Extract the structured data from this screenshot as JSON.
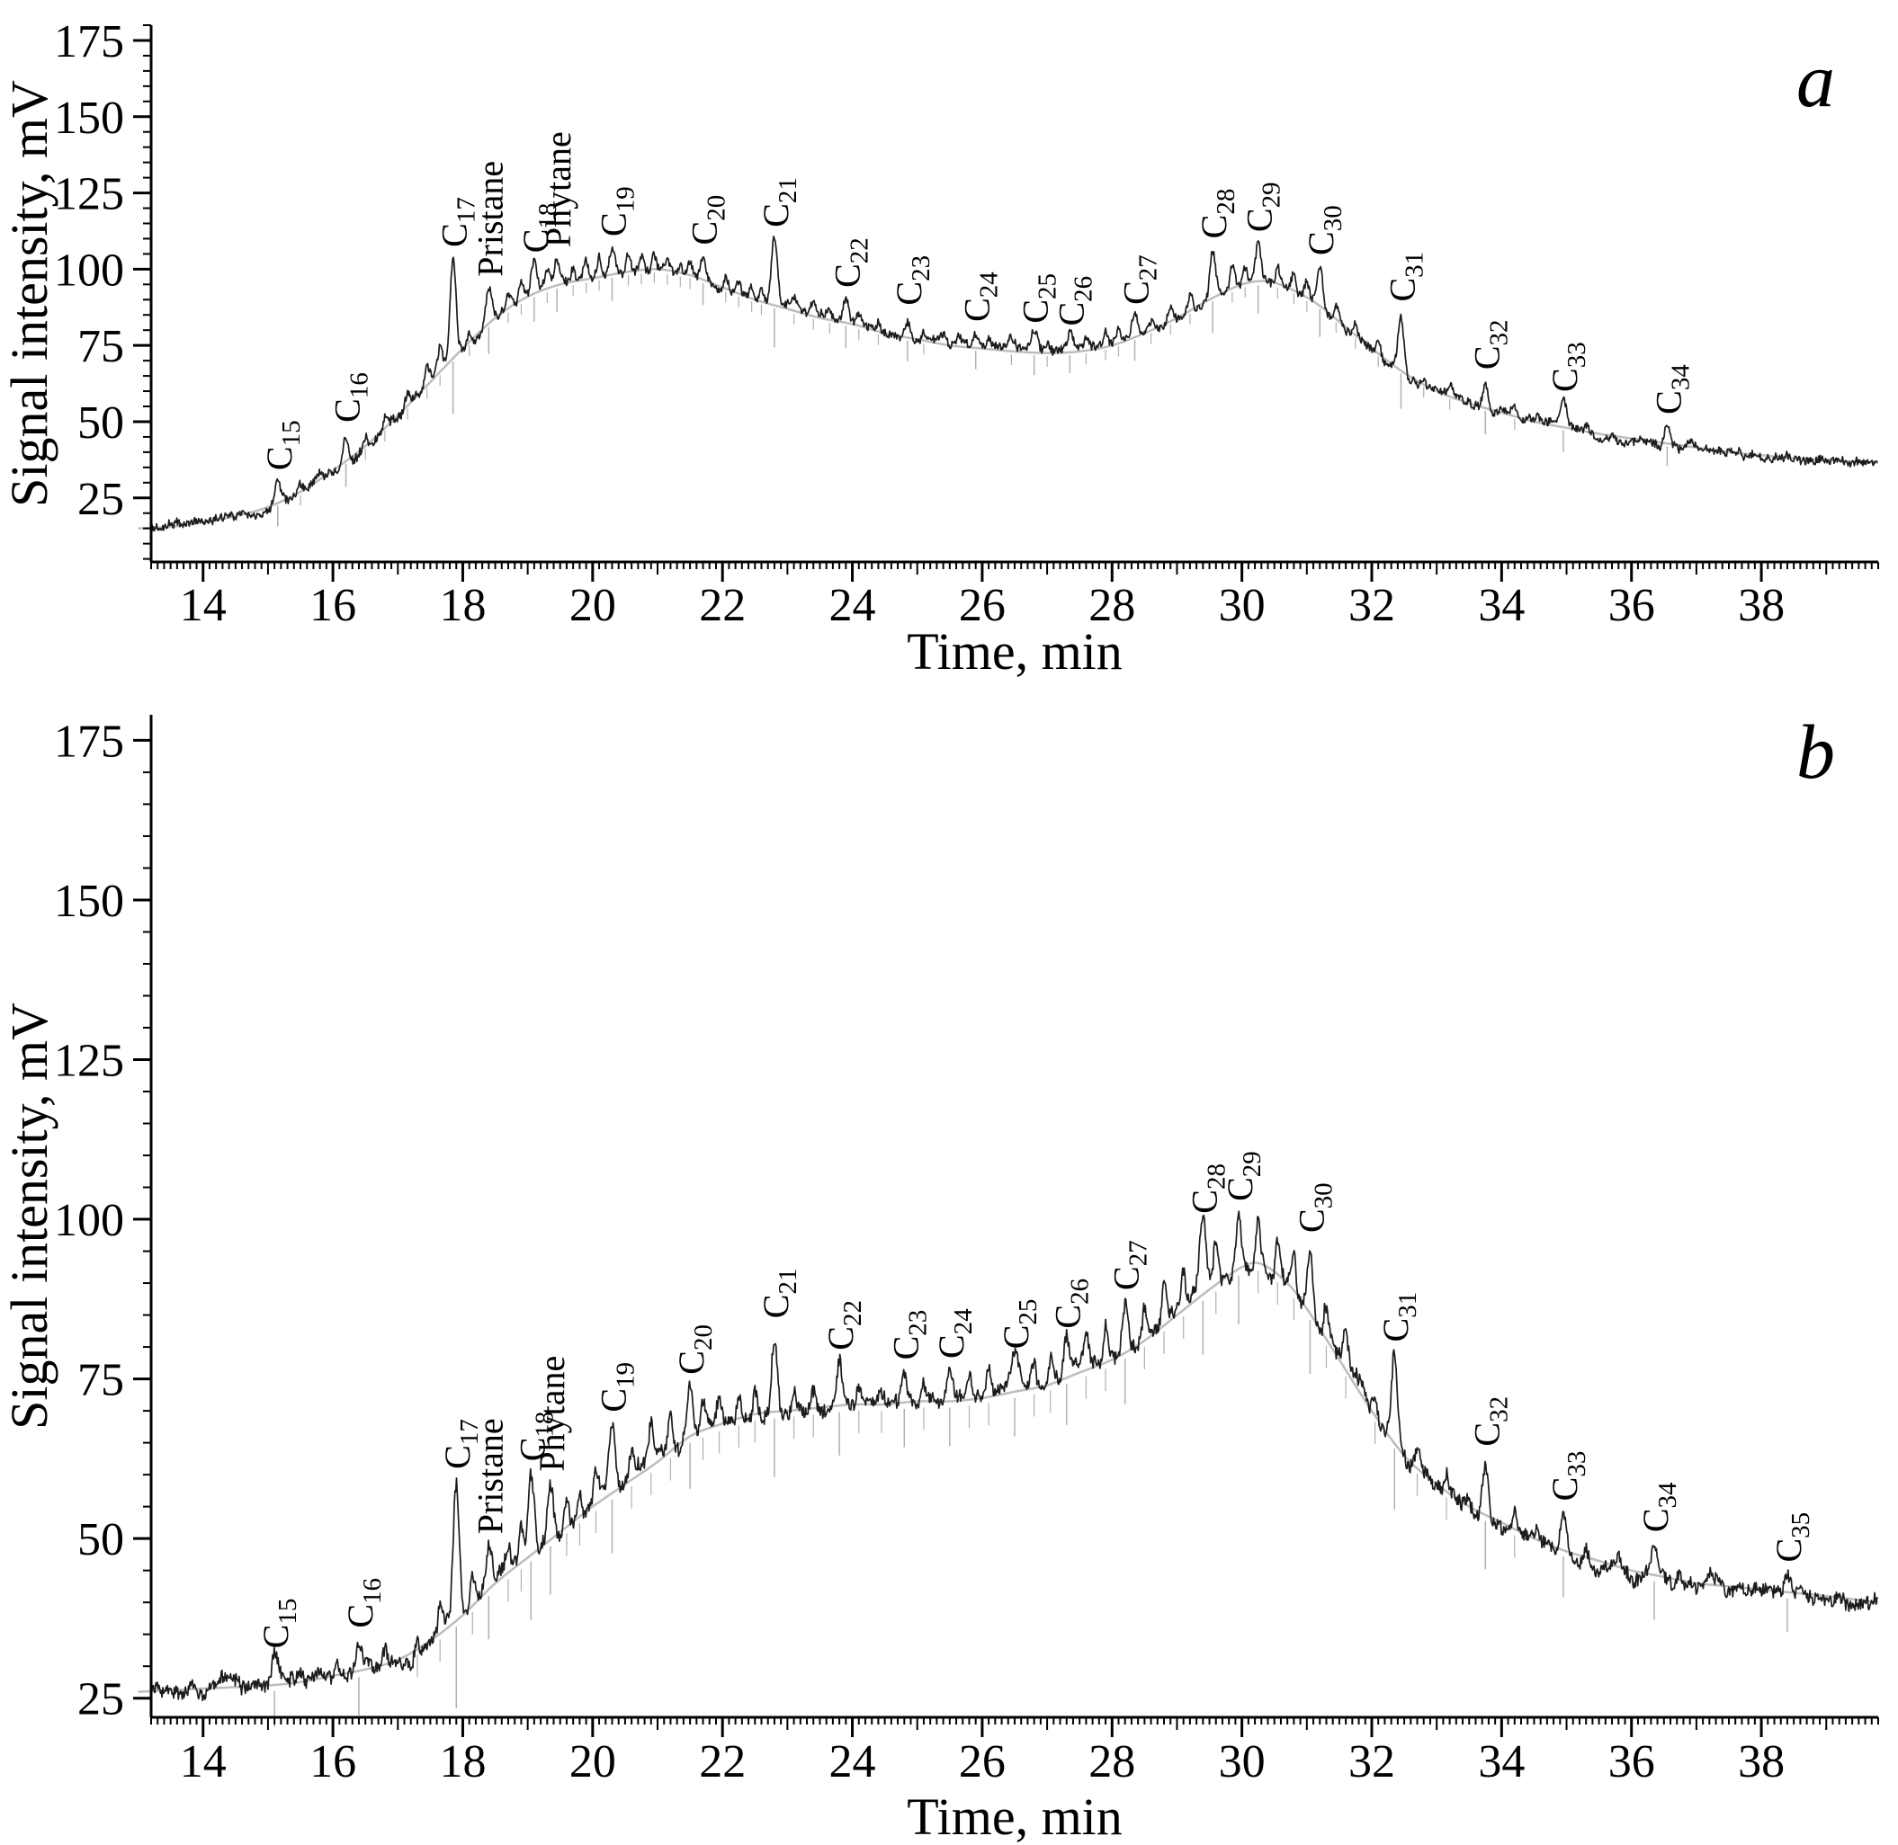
{
  "figure": {
    "background": "#ffffff",
    "panel_letters": [
      "a",
      "b"
    ]
  },
  "chart_data": [
    {
      "type": "line",
      "panel_label": "a",
      "title": "",
      "xlabel": "Time, min",
      "ylabel": "Signal intensity, mV",
      "xlim": [
        13.2,
        39.8
      ],
      "ylim": [
        4,
        180
      ],
      "xticks": [
        14,
        16,
        18,
        20,
        22,
        24,
        26,
        28,
        30,
        32,
        34,
        36,
        38
      ],
      "yticks": [
        25,
        50,
        75,
        100,
        125,
        150,
        175
      ],
      "grid": false,
      "legend": "none",
      "trace_color": "#1c1c1c",
      "envelope_color": "#bdbdbd",
      "dropline_color": "#b0b0b0",
      "noise_mv": 1.3,
      "baseline": [
        [
          13,
          15
        ],
        [
          13.5,
          15.5
        ],
        [
          14,
          17
        ],
        [
          14.5,
          19
        ],
        [
          15,
          22
        ],
        [
          15.5,
          27
        ],
        [
          16,
          34
        ],
        [
          16.5,
          42
        ],
        [
          17,
          52
        ],
        [
          17.5,
          63
        ],
        [
          18,
          74
        ],
        [
          18.5,
          84
        ],
        [
          19,
          91
        ],
        [
          19.5,
          95
        ],
        [
          20,
          97
        ],
        [
          20.5,
          99
        ],
        [
          21,
          100
        ],
        [
          21.5,
          98
        ],
        [
          22,
          94
        ],
        [
          22.5,
          90
        ],
        [
          23,
          87
        ],
        [
          23.5,
          84
        ],
        [
          24,
          82
        ],
        [
          24.5,
          79
        ],
        [
          25,
          77
        ],
        [
          25.5,
          75
        ],
        [
          26,
          74
        ],
        [
          26.5,
          73
        ],
        [
          27,
          72.5
        ],
        [
          27.5,
          73
        ],
        [
          28,
          75
        ],
        [
          28.5,
          79
        ],
        [
          29,
          84
        ],
        [
          29.5,
          90
        ],
        [
          30,
          95
        ],
        [
          30.4,
          96
        ],
        [
          30.8,
          93
        ],
        [
          31.2,
          88
        ],
        [
          31.6,
          81
        ],
        [
          32,
          74
        ],
        [
          32.5,
          66
        ],
        [
          33,
          60
        ],
        [
          33.5,
          56
        ],
        [
          34,
          53
        ],
        [
          34.5,
          50
        ],
        [
          35,
          48
        ],
        [
          35.5,
          46
        ],
        [
          36,
          44.5
        ],
        [
          36.5,
          43
        ],
        [
          37,
          41.5
        ],
        [
          37.5,
          40
        ],
        [
          38,
          39
        ],
        [
          38.5,
          38
        ],
        [
          39,
          37.5
        ],
        [
          39.8,
          36.5
        ]
      ],
      "peaks": [
        {
          "label": "C15",
          "x": 15.15,
          "h": 7
        },
        {
          "label": "C16",
          "x": 16.2,
          "h": 9
        },
        {
          "label": "C17",
          "x": 17.85,
          "h": 33
        },
        {
          "label": "Pristane",
          "x": 18.4,
          "h": 12
        },
        {
          "label": "C18",
          "x": 19.1,
          "h": 10
        },
        {
          "label": "Phytane",
          "x": 19.45,
          "h": 9
        },
        {
          "label": "C19",
          "x": 20.3,
          "h": 9
        },
        {
          "label": "C20",
          "x": 21.7,
          "h": 8
        },
        {
          "label": "C21",
          "x": 22.8,
          "h": 22
        },
        {
          "label": "C22",
          "x": 23.9,
          "h": 8
        },
        {
          "label": "C23",
          "x": 24.85,
          "h": 7
        },
        {
          "label": "C24",
          "x": 25.9,
          "h": 5
        },
        {
          "label": "C25",
          "x": 26.8,
          "h": 6
        },
        {
          "label": "C26",
          "x": 27.35,
          "h": 5
        },
        {
          "label": "C27",
          "x": 28.35,
          "h": 7
        },
        {
          "label": "C28",
          "x": 29.55,
          "h": 16
        },
        {
          "label": "C29",
          "x": 30.25,
          "h": 13
        },
        {
          "label": "C30",
          "x": 31.2,
          "h": 13
        },
        {
          "label": "C31",
          "x": 32.45,
          "h": 19
        },
        {
          "label": "C32",
          "x": 33.75,
          "h": 9
        },
        {
          "label": "C33",
          "x": 34.95,
          "h": 8
        },
        {
          "label": "C34",
          "x": 36.55,
          "h": 6
        }
      ],
      "minor_peaks": [
        [
          15.5,
          3
        ],
        [
          15.8,
          2.5
        ],
        [
          16.5,
          4
        ],
        [
          16.8,
          3.5
        ],
        [
          17.15,
          5
        ],
        [
          17.45,
          6
        ],
        [
          17.65,
          9
        ],
        [
          18.1,
          5
        ],
        [
          18.7,
          4
        ],
        [
          18.9,
          6
        ],
        [
          19.3,
          6
        ],
        [
          19.7,
          5
        ],
        [
          19.9,
          6
        ],
        [
          20.1,
          7
        ],
        [
          20.55,
          6
        ],
        [
          20.75,
          5
        ],
        [
          20.95,
          6
        ],
        [
          21.15,
          5
        ],
        [
          21.35,
          4
        ],
        [
          21.5,
          5
        ],
        [
          22.05,
          5
        ],
        [
          22.25,
          4
        ],
        [
          22.45,
          4
        ],
        [
          22.6,
          5
        ],
        [
          23.1,
          4
        ],
        [
          23.4,
          4
        ],
        [
          23.65,
          3
        ],
        [
          24.1,
          3
        ],
        [
          24.4,
          3
        ],
        [
          25.1,
          3
        ],
        [
          25.4,
          2.5
        ],
        [
          25.65,
          2.5
        ],
        [
          26.1,
          2.5
        ],
        [
          26.45,
          3
        ],
        [
          27.0,
          3
        ],
        [
          27.6,
          3
        ],
        [
          27.9,
          3.5
        ],
        [
          28.1,
          4
        ],
        [
          28.6,
          4
        ],
        [
          28.9,
          5
        ],
        [
          29.2,
          6
        ],
        [
          29.85,
          8
        ],
        [
          30.05,
          7
        ],
        [
          30.55,
          6
        ],
        [
          30.8,
          5
        ],
        [
          31.0,
          6
        ],
        [
          31.45,
          5
        ],
        [
          31.75,
          4
        ],
        [
          32.1,
          4
        ],
        [
          32.8,
          3
        ],
        [
          33.2,
          3
        ],
        [
          34.2,
          3
        ],
        [
          34.55,
          2.5
        ],
        [
          35.3,
          2.5
        ],
        [
          35.7,
          2
        ],
        [
          36.15,
          2
        ],
        [
          36.9,
          2
        ],
        [
          37.35,
          1.5
        ]
      ]
    },
    {
      "type": "line",
      "panel_label": "b",
      "title": "",
      "xlabel": "Time, min",
      "ylabel": "Signal intensity, mV",
      "xlim": [
        13.2,
        39.8
      ],
      "ylim": [
        22,
        179
      ],
      "xticks": [
        14,
        16,
        18,
        20,
        22,
        24,
        26,
        28,
        30,
        32,
        34,
        36,
        38
      ],
      "yticks": [
        25,
        50,
        75,
        100,
        125,
        150,
        175
      ],
      "grid": false,
      "legend": "none",
      "trace_color": "#1c1c1c",
      "envelope_color": "#bdbdbd",
      "dropline_color": "#b0b0b0",
      "noise_mv": 1.0,
      "baseline": [
        [
          13,
          26
        ],
        [
          14,
          26.5
        ],
        [
          15,
          27
        ],
        [
          15.5,
          27.5
        ],
        [
          16,
          28.5
        ],
        [
          16.5,
          29.5
        ],
        [
          17,
          31
        ],
        [
          17.5,
          34
        ],
        [
          18,
          38
        ],
        [
          18.5,
          43
        ],
        [
          19,
          47
        ],
        [
          19.5,
          51
        ],
        [
          20,
          55
        ],
        [
          20.5,
          58.5
        ],
        [
          21,
          62
        ],
        [
          21.5,
          66
        ],
        [
          22,
          68
        ],
        [
          22.5,
          69.5
        ],
        [
          23,
          70
        ],
        [
          23.5,
          70.5
        ],
        [
          24,
          71
        ],
        [
          24.5,
          71
        ],
        [
          25,
          71.5
        ],
        [
          25.5,
          71.5
        ],
        [
          26,
          72
        ],
        [
          26.5,
          73
        ],
        [
          27,
          74
        ],
        [
          27.5,
          76
        ],
        [
          28,
          78
        ],
        [
          28.5,
          81
        ],
        [
          29,
          85
        ],
        [
          29.5,
          89
        ],
        [
          30,
          92.5
        ],
        [
          30.3,
          93
        ],
        [
          30.7,
          90
        ],
        [
          31,
          86
        ],
        [
          31.5,
          78
        ],
        [
          32,
          70
        ],
        [
          32.5,
          63
        ],
        [
          33,
          58.5
        ],
        [
          33.5,
          55
        ],
        [
          34,
          52.5
        ],
        [
          34.5,
          50
        ],
        [
          35,
          48
        ],
        [
          35.5,
          46.5
        ],
        [
          36,
          45
        ],
        [
          36.5,
          44
        ],
        [
          37,
          43
        ],
        [
          37.5,
          42.5
        ],
        [
          38,
          42
        ],
        [
          38.5,
          41.5
        ],
        [
          39,
          41
        ],
        [
          39.8,
          40
        ]
      ],
      "peaks": [
        {
          "label": "C15",
          "x": 15.1,
          "h": 4
        },
        {
          "label": "C16",
          "x": 16.4,
          "h": 5
        },
        {
          "label": "C17",
          "x": 17.9,
          "h": 22
        },
        {
          "label": "Pristane",
          "x": 18.4,
          "h": 7
        },
        {
          "label": "C18",
          "x": 19.05,
          "h": 13
        },
        {
          "label": "Phytane",
          "x": 19.35,
          "h": 9
        },
        {
          "label": "C19",
          "x": 20.3,
          "h": 11
        },
        {
          "label": "C20",
          "x": 21.5,
          "h": 8
        },
        {
          "label": "C21",
          "x": 22.8,
          "h": 13
        },
        {
          "label": "C22",
          "x": 23.8,
          "h": 7
        },
        {
          "label": "C23",
          "x": 24.8,
          "h": 5
        },
        {
          "label": "C24",
          "x": 25.5,
          "h": 5
        },
        {
          "label": "C25",
          "x": 26.5,
          "h": 5
        },
        {
          "label": "C26",
          "x": 27.3,
          "h": 6
        },
        {
          "label": "C27",
          "x": 28.2,
          "h": 8
        },
        {
          "label": "C28",
          "x": 29.4,
          "h": 11
        },
        {
          "label": "C29",
          "x": 29.95,
          "h": 9
        },
        {
          "label": "C30",
          "x": 31.05,
          "h": 11
        },
        {
          "label": "C31",
          "x": 32.35,
          "h": 14
        },
        {
          "label": "C32",
          "x": 33.75,
          "h": 9
        },
        {
          "label": "C33",
          "x": 34.95,
          "h": 6
        },
        {
          "label": "C34",
          "x": 36.35,
          "h": 5
        },
        {
          "label": "C35",
          "x": 38.4,
          "h": 3
        }
      ],
      "minor_peaks": [
        [
          14.3,
          1.5
        ],
        [
          15.5,
          2
        ],
        [
          16.05,
          2
        ],
        [
          16.8,
          2.5
        ],
        [
          17.3,
          3
        ],
        [
          17.65,
          4
        ],
        [
          18.15,
          4
        ],
        [
          18.7,
          4
        ],
        [
          18.9,
          5
        ],
        [
          19.6,
          5
        ],
        [
          19.8,
          4
        ],
        [
          20.05,
          5
        ],
        [
          20.6,
          4
        ],
        [
          20.9,
          5
        ],
        [
          21.2,
          6
        ],
        [
          21.7,
          5
        ],
        [
          21.95,
          4
        ],
        [
          22.25,
          4
        ],
        [
          22.5,
          4
        ],
        [
          23.1,
          4
        ],
        [
          23.4,
          3
        ],
        [
          24.1,
          3
        ],
        [
          24.45,
          3
        ],
        [
          25.1,
          3
        ],
        [
          25.8,
          3
        ],
        [
          26.1,
          3
        ],
        [
          26.8,
          4
        ],
        [
          27.05,
          4
        ],
        [
          27.6,
          5
        ],
        [
          27.9,
          5
        ],
        [
          28.5,
          5
        ],
        [
          28.8,
          6
        ],
        [
          29.1,
          6
        ],
        [
          29.6,
          7
        ],
        [
          30.25,
          7
        ],
        [
          30.55,
          6
        ],
        [
          30.8,
          6
        ],
        [
          31.3,
          5
        ],
        [
          31.6,
          4
        ],
        [
          32.05,
          4
        ],
        [
          32.7,
          3
        ],
        [
          33.15,
          3
        ],
        [
          34.2,
          3
        ],
        [
          34.55,
          2.5
        ],
        [
          35.3,
          2
        ],
        [
          35.8,
          2
        ],
        [
          36.7,
          2
        ],
        [
          37.2,
          1.5
        ]
      ]
    }
  ]
}
